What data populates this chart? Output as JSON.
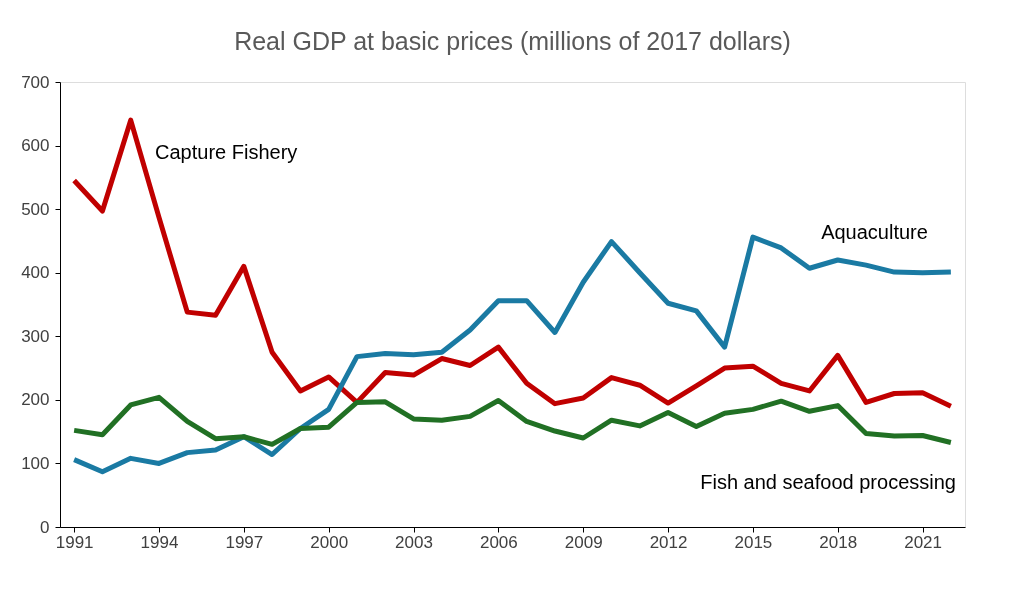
{
  "chart_data": {
    "type": "line",
    "title": "Real GDP at basic prices (millions of 2017 dollars)",
    "x": [
      1991,
      1992,
      1993,
      1994,
      1995,
      1996,
      1997,
      1998,
      1999,
      2000,
      2001,
      2002,
      2003,
      2004,
      2005,
      2006,
      2007,
      2008,
      2009,
      2010,
      2011,
      2012,
      2013,
      2014,
      2015,
      2016,
      2017,
      2018,
      2019,
      2020,
      2021,
      2022
    ],
    "series": [
      {
        "name": "Capture Fishery",
        "color": "#c00000",
        "values": [
          545,
          497,
          640,
          487,
          338,
          333,
          410,
          275,
          214,
          236,
          196,
          243,
          239,
          265,
          254,
          283,
          226,
          194,
          203,
          235,
          223,
          195,
          222,
          250,
          253,
          226,
          214,
          270,
          196,
          210,
          211,
          190
        ]
      },
      {
        "name": "Aquaculture",
        "color": "#1a7aa3",
        "values": [
          106,
          87,
          108,
          100,
          117,
          121,
          142,
          114,
          155,
          185,
          268,
          273,
          271,
          275,
          310,
          356,
          356,
          306,
          385,
          449,
          400,
          352,
          340,
          283,
          456,
          439,
          407,
          420,
          412,
          401,
          400,
          401
        ]
      },
      {
        "name": "Fish and seafood processing",
        "color": "#217024",
        "values": [
          152,
          145,
          192,
          204,
          166,
          139,
          142,
          130,
          155,
          157,
          196,
          197,
          170,
          168,
          174,
          199,
          166,
          151,
          140,
          168,
          159,
          180,
          158,
          179,
          185,
          198,
          182,
          191,
          147,
          143,
          144,
          133
        ]
      }
    ],
    "xlim": [
      1990.5,
      2022.5
    ],
    "xticks": [
      1991,
      1994,
      1997,
      2000,
      2003,
      2006,
      2009,
      2012,
      2015,
      2018,
      2021
    ],
    "ylim": [
      0,
      700
    ],
    "yticks": [
      0,
      100,
      200,
      300,
      400,
      500,
      600,
      700
    ],
    "grid": false,
    "legend": false,
    "marker": "none",
    "line_style": "solid"
  }
}
